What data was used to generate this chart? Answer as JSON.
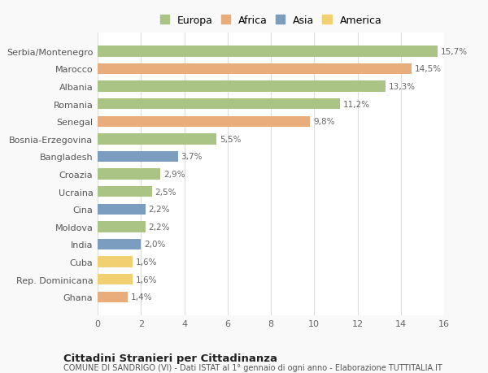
{
  "categories": [
    "Serbia/Montenegro",
    "Marocco",
    "Albania",
    "Romania",
    "Senegal",
    "Bosnia-Erzegovina",
    "Bangladesh",
    "Croazia",
    "Ucraina",
    "Cina",
    "Moldova",
    "India",
    "Cuba",
    "Rep. Dominicana",
    "Ghana"
  ],
  "values": [
    15.7,
    14.5,
    13.3,
    11.2,
    9.8,
    5.5,
    3.7,
    2.9,
    2.5,
    2.2,
    2.2,
    2.0,
    1.6,
    1.6,
    1.4
  ],
  "colors": [
    "#a9c484",
    "#e8ad7a",
    "#a9c484",
    "#a9c484",
    "#e8ad7a",
    "#a9c484",
    "#7b9ec0",
    "#a9c484",
    "#a9c484",
    "#7b9ec0",
    "#a9c484",
    "#7b9ec0",
    "#f0d070",
    "#f0d070",
    "#e8ad7a"
  ],
  "labels": [
    "15,7%",
    "14,5%",
    "13,3%",
    "11,2%",
    "9,8%",
    "5,5%",
    "3,7%",
    "2,9%",
    "2,5%",
    "2,2%",
    "2,2%",
    "2,0%",
    "1,6%",
    "1,6%",
    "1,4%"
  ],
  "legend_labels": [
    "Europa",
    "Africa",
    "Asia",
    "America"
  ],
  "legend_colors": [
    "#a9c484",
    "#e8ad7a",
    "#7b9ec0",
    "#f0d070"
  ],
  "title": "Cittadini Stranieri per Cittadinanza",
  "subtitle": "COMUNE DI SANDRIGO (VI) - Dati ISTAT al 1° gennaio di ogni anno - Elaborazione TUTTITALIA.IT",
  "xlim": [
    0,
    16
  ],
  "xticks": [
    0,
    2,
    4,
    6,
    8,
    10,
    12,
    14,
    16
  ],
  "background_color": "#f9f9f9",
  "axes_bg": "#ffffff",
  "grid_color": "#dddddd"
}
